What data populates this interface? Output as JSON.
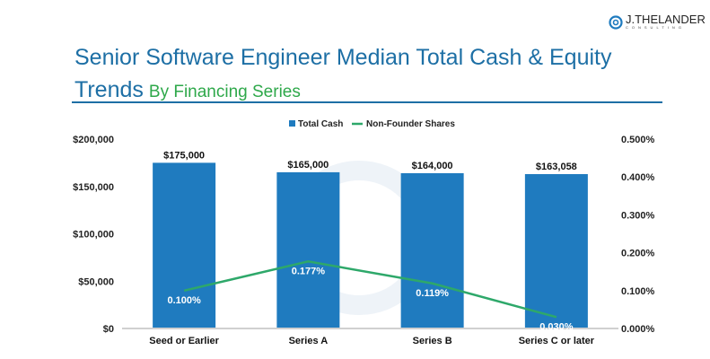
{
  "title": "Senior Software Engineer Median Total Cash & Equity",
  "title_line2": "Trends",
  "subtitle": "By Financing Series",
  "logo": {
    "name": "J.THELANDER",
    "sub": "CONSULTING"
  },
  "colors": {
    "bar": "#1f7bbf",
    "line": "#2ea86a",
    "title": "#1d6fa5",
    "subtitle": "#2ea84a"
  },
  "chart_data": {
    "type": "bar+line",
    "categories": [
      "Seed or Earlier",
      "Series A",
      "Series B",
      "Series C or later"
    ],
    "series": [
      {
        "name": "Total Cash",
        "type": "bar",
        "axis": "left",
        "values": [
          175000,
          165000,
          164000,
          163058
        ],
        "labels": [
          "$175,000",
          "$165,000",
          "$164,000",
          "$163,058"
        ]
      },
      {
        "name": "Non-Founder Shares",
        "type": "line",
        "axis": "right",
        "values": [
          0.1,
          0.177,
          0.119,
          0.03
        ],
        "labels": [
          "0.100%",
          "0.177%",
          "0.119%",
          "0.030%"
        ]
      }
    ],
    "left_axis": {
      "ylim": [
        0,
        200000
      ],
      "ticks": [
        "$0",
        "$50,000",
        "$100,000",
        "$150,000",
        "$200,000"
      ]
    },
    "right_axis": {
      "ylim": [
        0,
        0.5
      ],
      "ticks": [
        "0.000%",
        "0.100%",
        "0.200%",
        "0.300%",
        "0.400%",
        "0.500%"
      ]
    },
    "legend": "top",
    "grid": false
  }
}
